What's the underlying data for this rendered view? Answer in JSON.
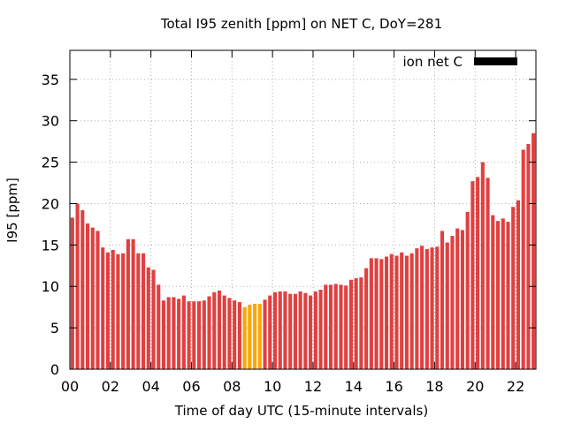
{
  "chart_data": {
    "type": "bar",
    "title": "Total I95 zenith [ppm] on NET C, DoY=281",
    "xlabel": "Time of day UTC (15-minute intervals)",
    "ylabel": "I95 [ppm]",
    "ylim": [
      0,
      38.5
    ],
    "xlim": [
      0,
      23.0
    ],
    "grid": true,
    "legend": {
      "label": "ion net C",
      "placement": "top-right",
      "color": "#000000"
    },
    "yticks": [
      0,
      5,
      10,
      15,
      20,
      25,
      30,
      35
    ],
    "xticks": [
      {
        "value": 0,
        "label": "00"
      },
      {
        "value": 2,
        "label": "02"
      },
      {
        "value": 4,
        "label": "04"
      },
      {
        "value": 6,
        "label": "06"
      },
      {
        "value": 8,
        "label": "08"
      },
      {
        "value": 10,
        "label": "10"
      },
      {
        "value": 12,
        "label": "12"
      },
      {
        "value": 14,
        "label": "14"
      },
      {
        "value": 16,
        "label": "16"
      },
      {
        "value": 18,
        "label": "18"
      },
      {
        "value": 20,
        "label": "20"
      },
      {
        "value": 22,
        "label": "22"
      }
    ],
    "interval_hours": 0.25,
    "series": [
      {
        "name": "ion net C",
        "color": "#e04040",
        "highlight_color": "#ffa500",
        "highlight_range_hours": [
          8.5,
          9.5
        ],
        "values": [
          18.3,
          20.0,
          19.2,
          17.6,
          17.1,
          16.7,
          14.7,
          14.1,
          14.4,
          13.9,
          14.0,
          15.7,
          15.7,
          14.0,
          14.0,
          12.3,
          12.0,
          10.2,
          8.3,
          8.7,
          8.7,
          8.5,
          8.9,
          8.2,
          8.2,
          8.2,
          8.3,
          8.8,
          9.3,
          9.5,
          8.9,
          8.6,
          8.3,
          8.1,
          7.5,
          7.8,
          7.9,
          7.9,
          8.4,
          8.9,
          9.3,
          9.4,
          9.4,
          9.1,
          9.1,
          9.4,
          9.2,
          8.9,
          9.4,
          9.6,
          10.2,
          10.2,
          10.3,
          10.2,
          10.1,
          10.8,
          11.0,
          11.1,
          12.2,
          13.4,
          13.4,
          13.3,
          13.6,
          13.9,
          13.7,
          14.1,
          13.7,
          14.0,
          14.6,
          14.9,
          14.5,
          14.7,
          14.8,
          16.7,
          15.3,
          16.1,
          17.0,
          16.8,
          19.0,
          22.7,
          23.2,
          25.0,
          23.1,
          18.6,
          17.9,
          18.2,
          17.8,
          19.6,
          20.4,
          26.5,
          27.2,
          28.5
        ]
      }
    ]
  }
}
